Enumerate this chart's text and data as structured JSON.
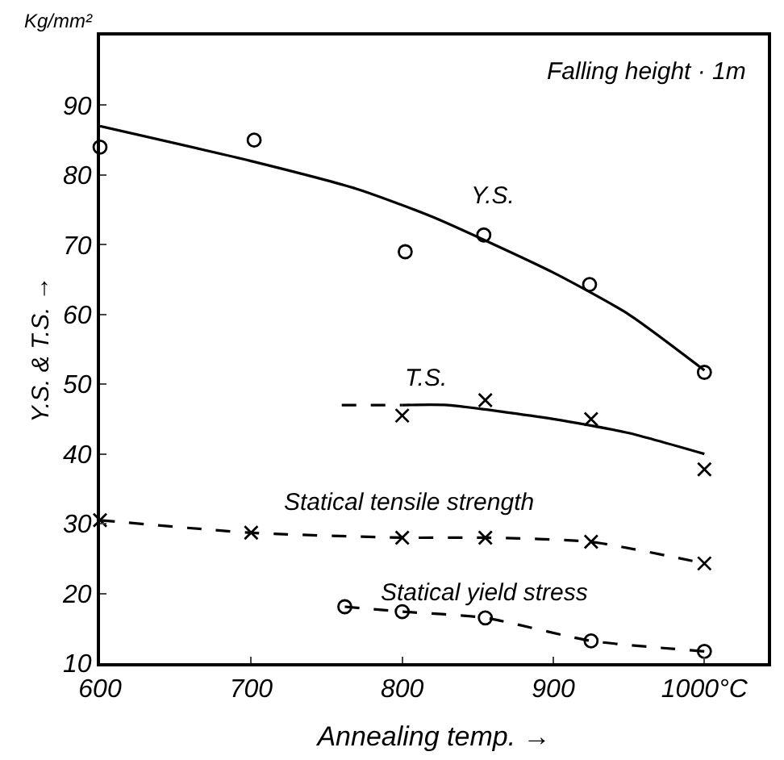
{
  "chart_data": {
    "type": "line",
    "xlabel": "Annealing temp. →",
    "ylabel": "Y.S. & T.S. →",
    "xlim": [
      600,
      1042
    ],
    "ylim": [
      10,
      100
    ],
    "xticks": [
      600,
      700,
      800,
      900,
      {
        "value": 1000,
        "label": "1000°C"
      }
    ],
    "yticks": [
      10,
      20,
      30,
      40,
      50,
      60,
      70,
      80,
      90
    ],
    "legend": false,
    "series": [
      {
        "type": "scatter",
        "color": "#000000",
        "marker": "circle",
        "x": [
          600,
          702,
          802,
          854,
          924,
          1000
        ],
        "values": [
          84,
          85,
          69,
          71.4,
          64.3,
          51.7
        ]
      },
      {
        "name": "Y.S.",
        "color": "#000000",
        "marker": "none",
        "line_style": "solid",
        "x": [
          600,
          700,
          770,
          820,
          900,
          950,
          1000
        ],
        "values": [
          87,
          82,
          78,
          74,
          66,
          60,
          52
        ]
      },
      {
        "type": "scatter",
        "color": "#000000",
        "marker": "cross",
        "x": [
          800,
          855,
          925,
          1000
        ],
        "values": [
          45.5,
          47.7,
          45,
          37.8
        ]
      },
      {
        "name": "T.S.",
        "color": "#000000",
        "marker": "none",
        "line_style": "solid",
        "x": [
          800,
          830,
          900,
          950,
          1000
        ],
        "values": [
          47,
          47,
          45,
          43,
          40
        ]
      },
      {
        "color": "#000000",
        "marker": "none",
        "line_style": "dashed",
        "x": [
          760,
          800
        ],
        "values": [
          47,
          47
        ]
      },
      {
        "name": "Statical tensile strength",
        "color": "#000000",
        "marker": "cross",
        "line_style": "dashed",
        "x": [
          600,
          700,
          800,
          855,
          925,
          1000
        ],
        "values": [
          30.5,
          28.7,
          28,
          28,
          27.4,
          24.3
        ]
      },
      {
        "name": "Statical yield stress",
        "color": "#000000",
        "marker": "circle",
        "line_style": "dashed",
        "x": [
          762,
          800,
          855,
          925,
          1000
        ],
        "values": [
          18.1,
          17.4,
          16.5,
          13.2,
          11.7
        ]
      }
    ],
    "annotations": [
      "Falling height · 1m",
      "Kg/mm²"
    ]
  }
}
